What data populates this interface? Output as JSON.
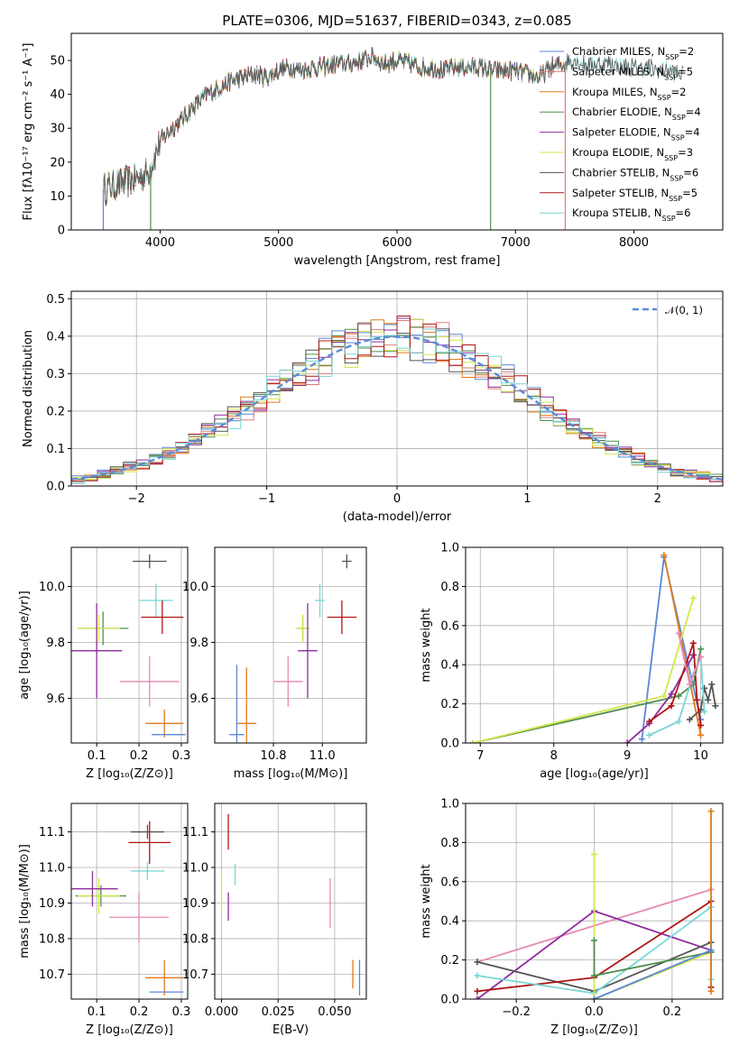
{
  "colors": {
    "Chabrier MILES": "#5b87d6",
    "Salpeter MILES": "#e07b7b",
    "Kroupa MILES": "#e07b1a",
    "Chabrier ELODIE": "#4f8f4f",
    "Salpeter ELODIE": "#8e2c9e",
    "Kroupa ELODIE": "#d2e74b",
    "Chabrier STELIB": "#555555",
    "Salpeter STELIB": "#b01515",
    "Kroupa STELIB": "#79d6d6",
    "pink": "#e68ab5",
    "gauss": "#5b8bd9"
  },
  "chart_data": [
    {
      "id": "spectrum",
      "type": "line",
      "title": "PLATE=0306, MJD=51637, FIBERID=0343, z=0.085",
      "xlabel": "wavelength [Angstrom, rest frame]",
      "ylabel": "Flux [fλ10⁻¹⁷ erg cm⁻² s⁻¹ A⁻¹]",
      "xlim": [
        3250,
        8750
      ],
      "ylim": [
        0,
        58
      ],
      "xticks": [
        "4000",
        "5000",
        "6000",
        "7000",
        "8000"
      ],
      "yticks": [
        "0",
        "10",
        "20",
        "30",
        "40",
        "50"
      ],
      "legend_position": "right",
      "legend": [
        "Chabrier MILES, N_SSP=2",
        "Salpeter MILES, N_SSP=5",
        "Kroupa MILES, N_SSP=2",
        "Chabrier ELODIE, N_SSP=4",
        "Salpeter ELODIE, N_SSP=4",
        "Kroupa ELODIE, N_SSP=3",
        "Chabrier STELIB, N_SSP=6",
        "Salpeter STELIB, N_SSP=5",
        "Kroupa STELIB, N_SSP=6"
      ],
      "continuum": [
        [
          3520,
          12
        ],
        [
          3600,
          13
        ],
        [
          3700,
          14
        ],
        [
          3800,
          15
        ],
        [
          3900,
          17
        ],
        [
          4000,
          26
        ],
        [
          4100,
          30
        ],
        [
          4200,
          33
        ],
        [
          4300,
          37
        ],
        [
          4400,
          40
        ],
        [
          4500,
          42
        ],
        [
          4600,
          44
        ],
        [
          4700,
          45
        ],
        [
          4800,
          46
        ],
        [
          4900,
          45
        ],
        [
          5000,
          47
        ],
        [
          5100,
          48
        ],
        [
          5200,
          47
        ],
        [
          5300,
          48
        ],
        [
          5400,
          48
        ],
        [
          5500,
          49
        ],
        [
          5600,
          49
        ],
        [
          5700,
          50
        ],
        [
          5800,
          51
        ],
        [
          5900,
          49
        ],
        [
          6000,
          50
        ],
        [
          6100,
          49
        ],
        [
          6200,
          48
        ],
        [
          6300,
          48
        ],
        [
          6400,
          47
        ],
        [
          6500,
          48
        ],
        [
          6600,
          48
        ],
        [
          6700,
          48
        ],
        [
          6800,
          47
        ],
        [
          6900,
          47
        ],
        [
          7000,
          47
        ],
        [
          7100,
          46
        ],
        [
          7200,
          45
        ],
        [
          7300,
          48
        ],
        [
          7400,
          49
        ],
        [
          7500,
          50
        ],
        [
          7600,
          49
        ],
        [
          7700,
          49
        ],
        [
          7800,
          49
        ],
        [
          7900,
          48
        ],
        [
          8000,
          48
        ],
        [
          8100,
          48
        ],
        [
          8200,
          47
        ],
        [
          8300,
          47
        ],
        [
          8400,
          46
        ],
        [
          8500,
          45
        ],
        [
          8600,
          44
        ],
        [
          8700,
          43
        ]
      ],
      "series_range": [
        [
          3520,
          7420
        ],
        [
          3520,
          7420
        ],
        [
          3520,
          7420
        ],
        [
          3520,
          6800
        ],
        [
          3520,
          7420
        ],
        [
          3520,
          7420
        ],
        [
          3520,
          8420
        ],
        [
          3520,
          7420
        ],
        [
          3520,
          8420
        ]
      ],
      "dropouts": [
        [
          3520,
          0
        ],
        [
          3920,
          3
        ],
        [
          6790,
          3
        ],
        [
          7420,
          1
        ]
      ]
    },
    {
      "id": "residual-hist",
      "type": "bar",
      "xlabel": "(data-model)/error",
      "ylabel": "Normed distribution",
      "xlim": [
        -2.5,
        2.5
      ],
      "ylim": [
        0,
        0.52
      ],
      "xticks": [
        "−2",
        "−1",
        "0",
        "1",
        "2"
      ],
      "yticks": [
        "0.0",
        "0.1",
        "0.2",
        "0.3",
        "0.4",
        "0.5"
      ],
      "legend": "𝒩(0, 1)",
      "legend_position": "top-right",
      "bin_width": 0.1,
      "x_start": -2.5
    },
    {
      "id": "age-vs-Z",
      "type": "scatter",
      "xlabel": "Z [log₁₀(Z/Z⊙)]",
      "ylabel": "age  [log₁₀(age/yr)]",
      "xlim": [
        0.04,
        0.315
      ],
      "ylim": [
        9.44,
        10.14
      ],
      "xticks": [
        "0.1",
        "0.2",
        "0.3"
      ],
      "yticks": [
        "9.6",
        "9.8",
        "10.0"
      ],
      "points": [
        {
          "c": 6,
          "x": 0.225,
          "y": 10.09,
          "xe": 0.04,
          "ye": 0.025
        },
        {
          "c": 8,
          "x": 0.24,
          "y": 9.95,
          "xe": 0.04,
          "ye": 0.06
        },
        {
          "c": 7,
          "x": 0.255,
          "y": 9.89,
          "xe": 0.05,
          "ye": 0.06
        },
        {
          "c": 3,
          "x": 0.115,
          "y": 9.85,
          "xe": 0.06,
          "ye": 0.06
        },
        {
          "c": 5,
          "x": 0.105,
          "y": 9.85,
          "xe": 0.05,
          "ye": 0.05
        },
        {
          "c": 4,
          "x": 0.1,
          "y": 9.77,
          "xe": 0.06,
          "ye": 0.17
        },
        {
          "c": 9,
          "x": 0.225,
          "y": 9.66,
          "xe": 0.07,
          "ye": 0.09
        },
        {
          "c": 2,
          "x": 0.26,
          "y": 9.51,
          "xe": 0.045,
          "ye": 0.05
        },
        {
          "c": 0,
          "x": 0.27,
          "y": 9.47,
          "xe": 0.04,
          "ye": 0.0
        }
      ]
    },
    {
      "id": "age-vs-mass",
      "type": "scatter",
      "xlabel": "mass [log₁₀(M/M⊙)]",
      "ylabel": "",
      "xlim": [
        10.56,
        11.18
      ],
      "ylim": [
        9.44,
        10.14
      ],
      "xticks": [
        "10.8",
        "11.0"
      ],
      "yticks": [
        "9.6",
        "9.8",
        "10.0"
      ],
      "points": [
        {
          "c": 6,
          "x": 11.1,
          "y": 10.09,
          "xe": 0.02,
          "ye": 0.025
        },
        {
          "c": 8,
          "x": 10.99,
          "y": 9.95,
          "xe": 0.02,
          "ye": 0.06
        },
        {
          "c": 7,
          "x": 11.08,
          "y": 9.89,
          "xe": 0.06,
          "ye": 0.06
        },
        {
          "c": 3,
          "x": 10.92,
          "y": 9.85,
          "xe": 0.02,
          "ye": 0.04
        },
        {
          "c": 5,
          "x": 10.92,
          "y": 9.85,
          "xe": 0.03,
          "ye": 0.05
        },
        {
          "c": 4,
          "x": 10.94,
          "y": 9.77,
          "xe": 0.04,
          "ye": 0.17
        },
        {
          "c": 9,
          "x": 10.86,
          "y": 9.66,
          "xe": 0.06,
          "ye": 0.09
        },
        {
          "c": 2,
          "x": 10.69,
          "y": 9.51,
          "xe": 0.04,
          "ye": 0.2
        },
        {
          "c": 0,
          "x": 10.65,
          "y": 9.47,
          "xe": 0.03,
          "ye": 0.25
        }
      ]
    },
    {
      "id": "massweight-vs-age",
      "type": "line",
      "xlabel": "age  [log₁₀(age/yr)]",
      "ylabel": "mass weight",
      "xlim": [
        6.8,
        10.3
      ],
      "ylim": [
        0,
        1
      ],
      "xticks": [
        "7",
        "8",
        "9",
        "10"
      ],
      "yticks": [
        "0.0",
        "0.2",
        "0.4",
        "0.6",
        "0.8",
        "1.0"
      ],
      "series": [
        {
          "c": 0,
          "x": [
            9.2,
            9.5,
            10.0
          ],
          "y": [
            0.02,
            0.95,
            0.12
          ]
        },
        {
          "c": 2,
          "x": [
            9.5,
            10.0
          ],
          "y": [
            0.96,
            0.04
          ]
        },
        {
          "c": 3,
          "x": [
            6.9,
            9.7,
            9.9,
            10.0
          ],
          "y": [
            0.0,
            0.24,
            0.3,
            0.48
          ]
        },
        {
          "c": 4,
          "x": [
            9.0,
            9.3,
            9.6,
            9.9
          ],
          "y": [
            0.0,
            0.1,
            0.25,
            0.45
          ]
        },
        {
          "c": 5,
          "x": [
            6.9,
            9.5,
            9.9
          ],
          "y": [
            0.0,
            0.24,
            0.74
          ]
        },
        {
          "c": 6,
          "x": [
            9.85,
            10.0,
            10.05,
            10.1,
            10.15,
            10.2
          ],
          "y": [
            0.12,
            0.17,
            0.28,
            0.22,
            0.3,
            0.19
          ]
        },
        {
          "c": 7,
          "x": [
            9.3,
            9.6,
            9.9,
            9.95,
            10.0
          ],
          "y": [
            0.11,
            0.19,
            0.51,
            0.22,
            0.09
          ]
        },
        {
          "c": 8,
          "x": [
            9.3,
            9.7,
            9.9,
            10.0,
            10.05
          ],
          "y": [
            0.04,
            0.11,
            0.35,
            0.44,
            0.16
          ]
        },
        {
          "c": 9,
          "x": [
            9.7,
            9.85,
            10.0
          ],
          "y": [
            0.56,
            0.3,
            0.44
          ]
        }
      ]
    },
    {
      "id": "mass-vs-Z",
      "type": "scatter",
      "xlabel": "Z [log₁₀(Z/Z⊙)]",
      "ylabel": "mass [log₁₀(M/M⊙)]",
      "xlim": [
        0.04,
        0.315
      ],
      "ylim": [
        10.63,
        11.18
      ],
      "xticks": [
        "0.1",
        "0.2",
        "0.3"
      ],
      "yticks": [
        "10.7",
        "10.8",
        "10.9",
        "11.0",
        "11.1"
      ],
      "points": [
        {
          "c": 6,
          "x": 0.22,
          "y": 11.1,
          "xe": 0.04,
          "ye": 0.02
        },
        {
          "c": 7,
          "x": 0.225,
          "y": 11.07,
          "xe": 0.05,
          "ye": 0.06
        },
        {
          "c": 8,
          "x": 0.22,
          "y": 10.99,
          "xe": 0.04,
          "ye": 0.025
        },
        {
          "c": 3,
          "x": 0.11,
          "y": 10.92,
          "xe": 0.06,
          "ye": 0.03
        },
        {
          "c": 5,
          "x": 0.105,
          "y": 10.92,
          "xe": 0.05,
          "ye": 0.05
        },
        {
          "c": 4,
          "x": 0.09,
          "y": 10.94,
          "xe": 0.06,
          "ye": 0.05
        },
        {
          "c": 9,
          "x": 0.2,
          "y": 10.86,
          "xe": 0.07,
          "ye": 0.07
        },
        {
          "c": 2,
          "x": 0.26,
          "y": 10.69,
          "xe": 0.045,
          "ye": 0.05
        },
        {
          "c": 0,
          "x": 0.265,
          "y": 10.65,
          "xe": 0.04,
          "ye": 0.0
        }
      ]
    },
    {
      "id": "mass-vs-ebv",
      "type": "scatter",
      "xlabel": "E(B-V)",
      "ylabel": "",
      "xlim": [
        -0.003,
        0.064
      ],
      "ylim": [
        10.63,
        11.18
      ],
      "xticks": [
        "0.000",
        "0.025",
        "0.050"
      ],
      "yticks": [
        "10.7",
        "10.8",
        "10.9",
        "11.0",
        "11.1"
      ],
      "points": [
        {
          "c": 7,
          "x": 0.003,
          "y": 11.1,
          "xe": 0,
          "ye": 0.05
        },
        {
          "c": 8,
          "x": 0.006,
          "y": 10.98,
          "xe": 0,
          "ye": 0.03
        },
        {
          "c": 5,
          "x": 0.0,
          "y": 10.93,
          "xe": 0,
          "ye": 0.05
        },
        {
          "c": 4,
          "x": 0.003,
          "y": 10.89,
          "xe": 0,
          "ye": 0.04
        },
        {
          "c": 9,
          "x": 0.048,
          "y": 10.9,
          "xe": 0,
          "ye": 0.07
        },
        {
          "c": 2,
          "x": 0.058,
          "y": 10.7,
          "xe": 0,
          "ye": 0.04
        },
        {
          "c": 0,
          "x": 0.061,
          "y": 10.69,
          "xe": 0,
          "ye": 0.05
        }
      ]
    },
    {
      "id": "massweight-vs-Z",
      "type": "line",
      "xlabel": "Z [log₁₀(Z/Z⊙)]",
      "ylabel": "mass weight",
      "xlim": [
        -0.33,
        0.33
      ],
      "ylim": [
        0,
        1
      ],
      "xticks": [
        "−0.2",
        "0.0",
        "0.2"
      ],
      "yticks": [
        "0.0",
        "0.2",
        "0.4",
        "0.6",
        "0.8",
        "1.0"
      ],
      "series": [
        {
          "c": 9,
          "x": [
            -0.3,
            0.3
          ],
          "y": [
            0.19,
            0.56
          ]
        },
        {
          "c": 4,
          "x": [
            -0.3,
            0.0,
            0.3
          ],
          "y": [
            0.0,
            0.45,
            0.25
          ]
        },
        {
          "c": 6,
          "x": [
            -0.3,
            0.0,
            0.3
          ],
          "y": [
            0.19,
            0.04,
            0.29
          ]
        },
        {
          "c": 7,
          "x": [
            -0.3,
            0.0,
            0.3,
            0.3
          ],
          "y": [
            0.04,
            0.11,
            0.5,
            0.06
          ]
        },
        {
          "c": 8,
          "x": [
            -0.3,
            0.0,
            0.3,
            0.3
          ],
          "y": [
            0.12,
            0.03,
            0.47,
            0.1
          ]
        },
        {
          "c": 5,
          "x": [
            0.0,
            0.0,
            0.3
          ],
          "y": [
            0.74,
            0.0,
            0.24
          ]
        },
        {
          "c": 3,
          "x": [
            0.0,
            0.0,
            0.3
          ],
          "y": [
            0.3,
            0.12,
            0.24
          ]
        },
        {
          "c": 2,
          "x": [
            0.3,
            0.3
          ],
          "y": [
            0.96,
            0.04
          ]
        },
        {
          "c": 0,
          "x": [
            0.0,
            0.3
          ],
          "y": [
            0.0,
            0.25
          ]
        }
      ]
    }
  ]
}
